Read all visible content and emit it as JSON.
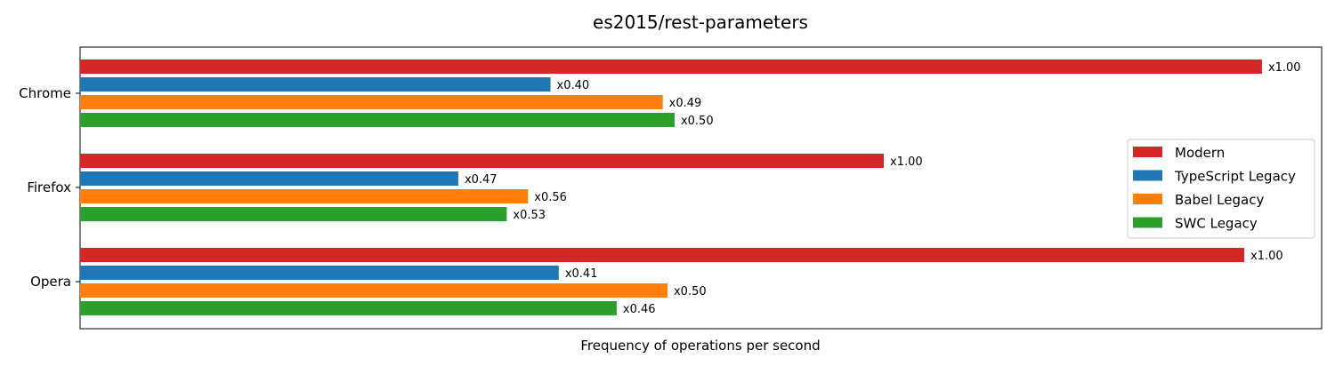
{
  "chart_data": {
    "type": "bar",
    "orientation": "horizontal",
    "title": "es2015/rest-parameters",
    "xlabel": "Frequency of operations per second",
    "ylabel": "",
    "x_ticks_shown": false,
    "grid": false,
    "legend_position": "center-right",
    "categories": [
      "Chrome",
      "Firefox",
      "Opera"
    ],
    "series": [
      {
        "name": "Modern",
        "color": "#d62728",
        "values": [
          1.0,
          0.68,
          0.985
        ],
        "labels": [
          "x1.00",
          "x1.00",
          "x1.00"
        ]
      },
      {
        "name": "TypeScript Legacy",
        "color": "#1f77b4",
        "values": [
          0.398,
          0.32,
          0.405
        ],
        "labels": [
          "x0.40",
          "x0.47",
          "x0.41"
        ]
      },
      {
        "name": "Babel Legacy",
        "color": "#ff7f0e",
        "values": [
          0.493,
          0.379,
          0.497
        ],
        "labels": [
          "x0.49",
          "x0.56",
          "x0.50"
        ]
      },
      {
        "name": "SWC Legacy",
        "color": "#2ca02c",
        "values": [
          0.503,
          0.361,
          0.454
        ],
        "labels": [
          "x0.50",
          "x0.53",
          "x0.46"
        ]
      }
    ],
    "xlim": [
      0,
      1.0505
    ]
  }
}
